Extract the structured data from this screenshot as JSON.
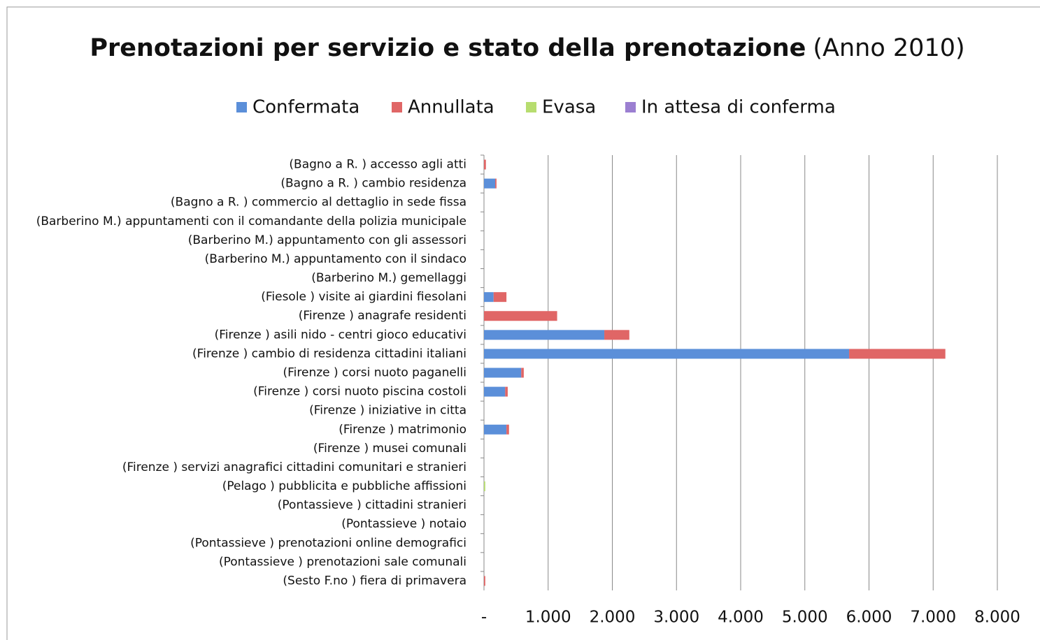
{
  "chart_data": {
    "type": "bar",
    "orientation": "horizontal",
    "stacked": true,
    "title": "Prenotazioni per servizio e stato della prenotazione",
    "subtitle": "(Anno 2010)",
    "categories": [
      "(Bagno a R. ) accesso agli atti",
      "(Bagno a R. ) cambio residenza",
      "(Bagno a R. ) commercio al dettaglio in sede fissa",
      "(Barberino M.) appuntamenti con il comandante della polizia municipale",
      "(Barberino M.) appuntamento con gli assessori",
      "(Barberino M.) appuntamento con il sindaco",
      "(Barberino M.) gemellaggi",
      "(Fiesole ) visite ai giardini fiesolani",
      "(Firenze ) anagrafe residenti",
      "(Firenze ) asili nido - centri gioco educativi",
      "(Firenze ) cambio di residenza cittadini italiani",
      "(Firenze ) corsi nuoto paganelli",
      "(Firenze ) corsi nuoto piscina costoli",
      "(Firenze ) iniziative in citta",
      "(Firenze ) matrimonio",
      "(Firenze ) musei comunali",
      "(Firenze ) servizi anagrafici cittadini comunitari e stranieri",
      "(Pelago ) pubblicita e pubbliche affissioni",
      "(Pontassieve ) cittadini stranieri",
      "(Pontassieve ) notaio",
      "(Pontassieve ) prenotazioni online demografici",
      "(Pontassieve ) prenotazioni sale comunali",
      "(Sesto F.no ) fiera di primavera"
    ],
    "series": [
      {
        "name": "Confermata",
        "color": "#5b8fd9",
        "values": [
          0,
          175,
          0,
          0,
          0,
          0,
          0,
          150,
          0,
          1875,
          5690,
          580,
          330,
          0,
          350,
          0,
          0,
          0,
          0,
          0,
          0,
          0,
          0
        ]
      },
      {
        "name": "Annullata",
        "color": "#e06666",
        "values": [
          30,
          20,
          0,
          0,
          0,
          0,
          0,
          200,
          1140,
          390,
          1500,
          40,
          40,
          0,
          40,
          0,
          0,
          0,
          0,
          0,
          0,
          0,
          20
        ]
      },
      {
        "name": "Evasa",
        "color": "#b7dd6f",
        "values": [
          0,
          0,
          0,
          0,
          0,
          0,
          0,
          0,
          0,
          0,
          0,
          0,
          0,
          0,
          0,
          0,
          0,
          20,
          0,
          0,
          0,
          0,
          0
        ]
      },
      {
        "name": "In attesa di conferma",
        "color": "#9b7fd1",
        "values": [
          0,
          0,
          0,
          0,
          0,
          0,
          0,
          0,
          0,
          0,
          0,
          0,
          0,
          0,
          0,
          0,
          0,
          0,
          0,
          0,
          0,
          0,
          0
        ]
      }
    ],
    "xlim": [
      0,
      8000
    ],
    "xticks": [
      {
        "value": 0,
        "label": "-"
      },
      {
        "value": 1000,
        "label": "1.000"
      },
      {
        "value": 2000,
        "label": "2.000"
      },
      {
        "value": 3000,
        "label": "3.000"
      },
      {
        "value": 4000,
        "label": "4.000"
      },
      {
        "value": 5000,
        "label": "5.000"
      },
      {
        "value": 6000,
        "label": "6.000"
      },
      {
        "value": 7000,
        "label": "7.000"
      },
      {
        "value": 8000,
        "label": "8.000"
      }
    ],
    "grid": true,
    "legend": "top"
  }
}
